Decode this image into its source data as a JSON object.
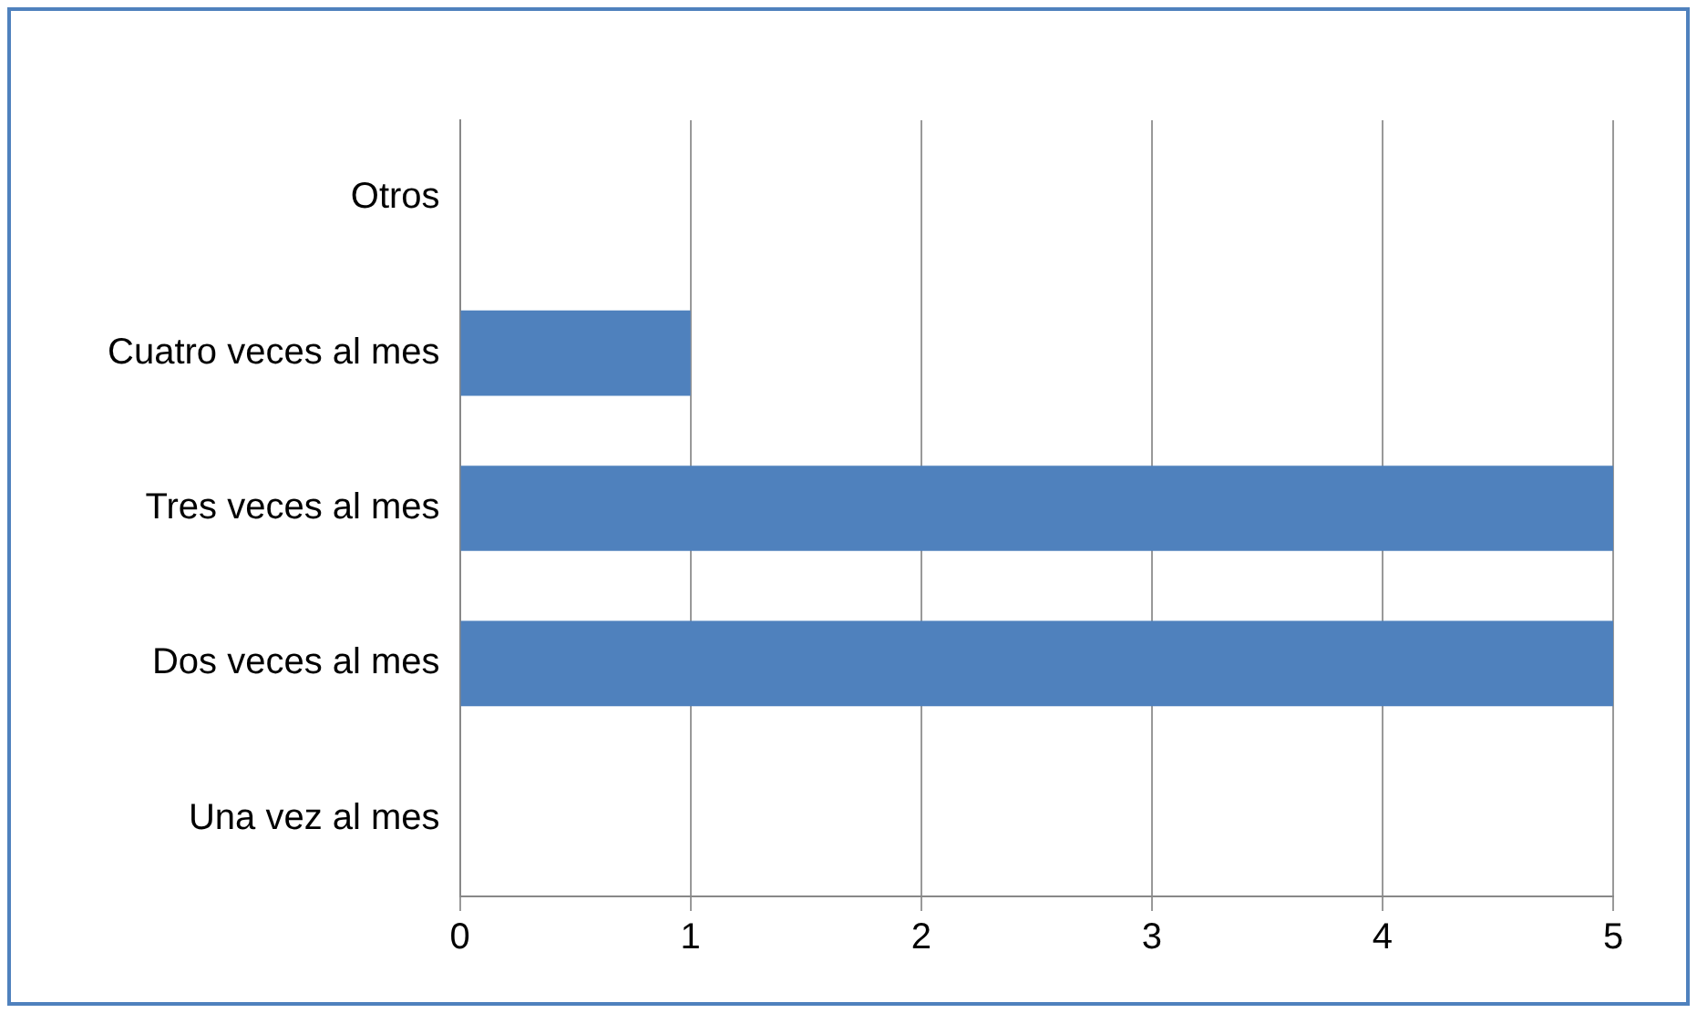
{
  "chart_data": {
    "type": "bar",
    "orientation": "horizontal",
    "categories": [
      "Otros",
      "Cuatro veces al mes",
      "Tres veces al mes",
      "Dos veces al mes",
      "Una vez al mes"
    ],
    "values": [
      0,
      1,
      5,
      5,
      0
    ],
    "color": "#4f81bd",
    "xlim": [
      0,
      5
    ],
    "xticks": [
      0,
      1,
      2,
      3,
      4,
      5
    ],
    "grid": "x",
    "legend": false
  }
}
